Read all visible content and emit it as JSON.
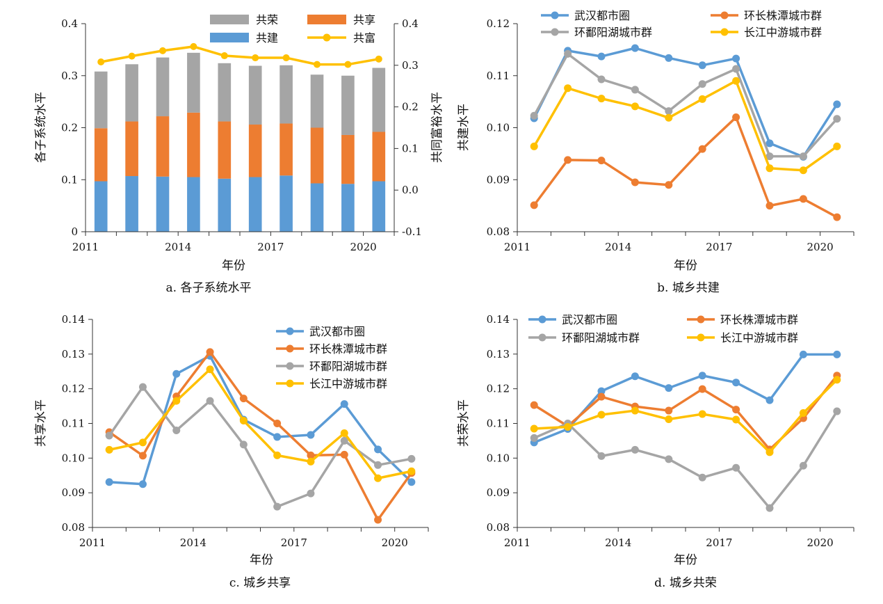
{
  "chart_data": [
    {
      "id": "a",
      "type": "bar",
      "stacked": true,
      "caption": "a. 各子系统水平",
      "xlabel": "年份",
      "ylabel": "各子系统水平",
      "y2label": "共同富裕水平",
      "categories": [
        "2011",
        "2012",
        "2013",
        "2014",
        "2015",
        "2016",
        "2017",
        "2018",
        "2019",
        "2020"
      ],
      "x_tick_labels": [
        "2011",
        "2014",
        "2017",
        "2020"
      ],
      "ylim": [
        0,
        0.4
      ],
      "yticks": [
        "0",
        "0.1",
        "0.2",
        "0.3",
        "0.4"
      ],
      "y2lim": [
        -0.1,
        0.4
      ],
      "y2ticks": [
        "-0.1",
        "0.0",
        "0.1",
        "0.2",
        "0.3",
        "0.4"
      ],
      "legend": [
        "共荣",
        "共享",
        "共建",
        "共富"
      ],
      "series": [
        {
          "name": "共建",
          "color": "#5b9bd5",
          "values": [
            0.097,
            0.107,
            0.106,
            0.105,
            0.102,
            0.105,
            0.108,
            0.093,
            0.092,
            0.097
          ]
        },
        {
          "name": "共享",
          "color": "#ed7d31",
          "values": [
            0.102,
            0.105,
            0.116,
            0.124,
            0.11,
            0.101,
            0.1,
            0.107,
            0.094,
            0.095
          ]
        },
        {
          "name": "共荣",
          "color": "#a5a5a5",
          "values": [
            0.109,
            0.11,
            0.113,
            0.115,
            0.112,
            0.113,
            0.112,
            0.102,
            0.114,
            0.123
          ]
        }
      ],
      "line_series": {
        "name": "共富",
        "color": "#ffc000",
        "axis": "right",
        "values": [
          0.308,
          0.322,
          0.335,
          0.345,
          0.323,
          0.318,
          0.318,
          0.302,
          0.302,
          0.315
        ]
      }
    },
    {
      "id": "b",
      "type": "line",
      "caption": "b. 城乡共建",
      "xlabel": "年份",
      "ylabel": "共建水平",
      "x": [
        "2011",
        "2012",
        "2013",
        "2014",
        "2015",
        "2016",
        "2017",
        "2018",
        "2019",
        "2020"
      ],
      "x_tick_labels": [
        "2011",
        "2014",
        "2017",
        "2020"
      ],
      "ylim": [
        0.08,
        0.12
      ],
      "yticks": [
        "0.08",
        "0.09",
        "0.10",
        "0.11",
        "0.12"
      ],
      "series": [
        {
          "name": "武汉都市圈",
          "color": "#5b9bd5",
          "values": [
            0.1018,
            0.1148,
            0.1137,
            0.1153,
            0.1134,
            0.112,
            0.1133,
            0.097,
            0.0944,
            0.1045
          ]
        },
        {
          "name": "环长株潭城市群",
          "color": "#ed7d31",
          "values": [
            0.0851,
            0.0938,
            0.0937,
            0.0895,
            0.089,
            0.0959,
            0.102,
            0.085,
            0.0863,
            0.0828
          ]
        },
        {
          "name": "环鄱阳湖城市群",
          "color": "#a5a5a5",
          "values": [
            0.1023,
            0.1142,
            0.1093,
            0.1073,
            0.1032,
            0.1084,
            0.1113,
            0.0945,
            0.0945,
            0.1017
          ]
        },
        {
          "name": "长江中游城市群",
          "color": "#ffc000",
          "values": [
            0.0964,
            0.1076,
            0.1056,
            0.1041,
            0.1019,
            0.1055,
            0.109,
            0.0922,
            0.0918,
            0.0964
          ]
        }
      ]
    },
    {
      "id": "c",
      "type": "line",
      "caption": "c. 城乡共享",
      "xlabel": "年份",
      "ylabel": "共享水平",
      "x": [
        "2011",
        "2012",
        "2013",
        "2014",
        "2015",
        "2016",
        "2017",
        "2018",
        "2019",
        "2020"
      ],
      "x_tick_labels": [
        "2011",
        "2014",
        "2017",
        "2020"
      ],
      "ylim": [
        0.08,
        0.14
      ],
      "yticks": [
        "0.08",
        "0.09",
        "0.10",
        "0.11",
        "0.12",
        "0.13",
        "0.14"
      ],
      "series": [
        {
          "name": "武汉都市圈",
          "color": "#5b9bd5",
          "values": [
            0.0931,
            0.0925,
            0.1243,
            0.1295,
            0.1111,
            0.1061,
            0.1067,
            0.1156,
            0.1025,
            0.0931
          ]
        },
        {
          "name": "环长株潭城市群",
          "color": "#ed7d31",
          "values": [
            0.1075,
            0.1007,
            0.1178,
            0.1306,
            0.1172,
            0.11,
            0.1008,
            0.101,
            0.0822,
            0.0957
          ]
        },
        {
          "name": "环鄱阳湖城市群",
          "color": "#a5a5a5",
          "values": [
            0.1065,
            0.1205,
            0.108,
            0.1165,
            0.1039,
            0.086,
            0.0898,
            0.105,
            0.098,
            0.0998
          ]
        },
        {
          "name": "长江中游城市群",
          "color": "#ffc000",
          "values": [
            0.1024,
            0.1045,
            0.1165,
            0.1256,
            0.1108,
            0.1008,
            0.099,
            0.1072,
            0.0942,
            0.0962
          ]
        }
      ]
    },
    {
      "id": "d",
      "type": "line",
      "caption": "d. 城乡共荣",
      "xlabel": "年份",
      "ylabel": "共荣水平",
      "x": [
        "2011",
        "2012",
        "2013",
        "2014",
        "2015",
        "2016",
        "2017",
        "2018",
        "2019",
        "2020"
      ],
      "x_tick_labels": [
        "2011",
        "2014",
        "2017",
        "2020"
      ],
      "ylim": [
        0.08,
        0.14
      ],
      "yticks": [
        "0.08",
        "0.09",
        "0.10",
        "0.11",
        "0.12",
        "0.13",
        "0.14"
      ],
      "series": [
        {
          "name": "武汉都市圈",
          "color": "#5b9bd5",
          "values": [
            0.1045,
            0.1084,
            0.1193,
            0.1236,
            0.1202,
            0.1238,
            0.1218,
            0.1167,
            0.1299,
            0.1299
          ]
        },
        {
          "name": "环长株潭城市群",
          "color": "#ed7d31",
          "values": [
            0.1153,
            0.1092,
            0.1177,
            0.1149,
            0.1137,
            0.1199,
            0.114,
            0.1025,
            0.1115,
            0.1238
          ]
        },
        {
          "name": "环鄱阳湖城市群",
          "color": "#a5a5a5",
          "values": [
            0.1058,
            0.11,
            0.1006,
            0.1024,
            0.0997,
            0.0944,
            0.0972,
            0.0856,
            0.0978,
            0.1135
          ]
        },
        {
          "name": "长江中游城市群",
          "color": "#ffc000",
          "values": [
            0.1085,
            0.109,
            0.1125,
            0.1137,
            0.1112,
            0.1127,
            0.1111,
            0.1017,
            0.113,
            0.1226
          ]
        }
      ]
    }
  ]
}
